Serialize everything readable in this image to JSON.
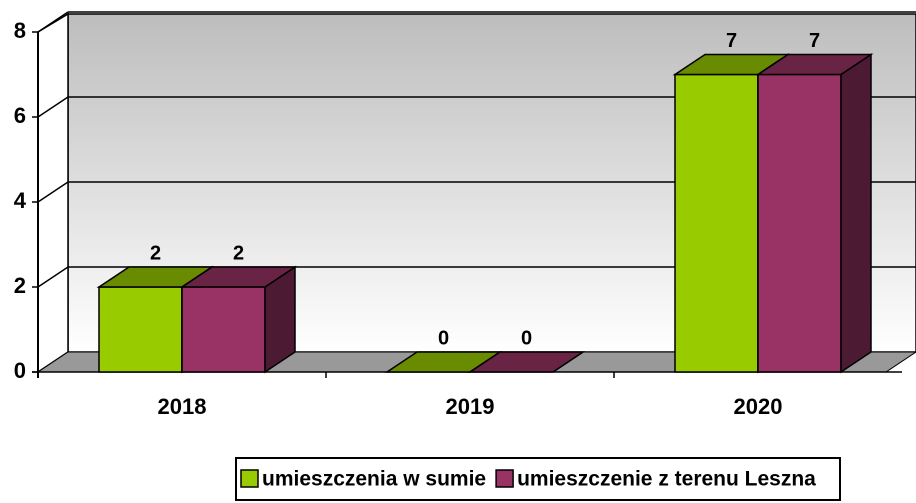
{
  "chart_data": {
    "type": "bar3d",
    "categories": [
      "2018",
      "2019",
      "2020"
    ],
    "series": [
      {
        "name": "umieszczenia w sumie",
        "color": "#99cc00",
        "values": [
          2,
          0,
          7
        ]
      },
      {
        "name": "umieszczenie z terenu Leszna",
        "color": "#993366",
        "values": [
          2,
          0,
          7
        ]
      }
    ],
    "ylim": [
      0,
      8
    ],
    "yticks": [
      0,
      2,
      4,
      6,
      8
    ],
    "grid": true,
    "legend": "bottom"
  }
}
